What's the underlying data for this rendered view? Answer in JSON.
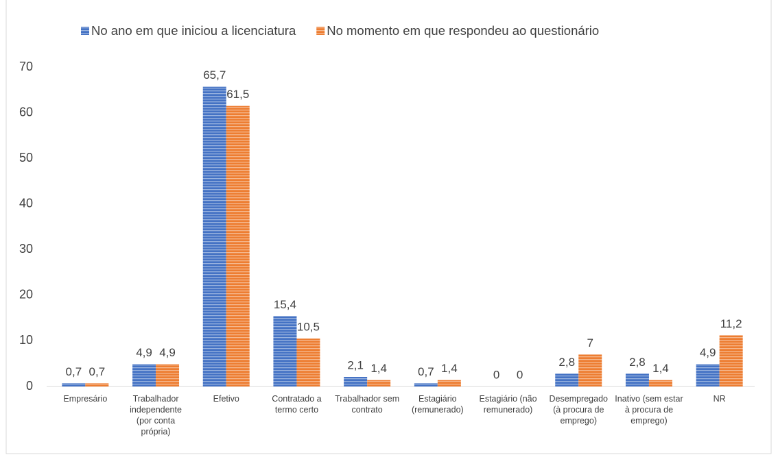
{
  "chart_data": {
    "type": "bar",
    "categories": [
      "Empresário",
      "Trabalhador independente (por conta própria)",
      "Efetivo",
      "Contratado a termo certo",
      "Trabalhador sem contrato",
      "Estagiário (remunerado)",
      "Estagiário (não remunerado)",
      "Desempregado (à procura de emprego)",
      "Inativo (sem estar à procura de emprego)",
      "NR"
    ],
    "series": [
      {
        "name": "No ano em que iniciou a licenciatura",
        "color": "#4472c4",
        "values": [
          0.7,
          4.9,
          65.7,
          15.4,
          2.1,
          0.7,
          0,
          2.8,
          2.8,
          4.9
        ],
        "value_labels": [
          "0,7",
          "4,9",
          "65,7",
          "15,4",
          "2,1",
          "0,7",
          "0",
          "2,8",
          "2,8",
          "4,9"
        ]
      },
      {
        "name": "No momento em que respondeu ao questionário",
        "color": "#ed7d31",
        "values": [
          0.7,
          4.9,
          61.5,
          10.5,
          1.4,
          1.4,
          0,
          7,
          1.4,
          11.2
        ],
        "value_labels": [
          "0,7",
          "4,9",
          "61,5",
          "10,5",
          "1,4",
          "1,4",
          "0",
          "7",
          "1,4",
          "11,2"
        ]
      }
    ],
    "ylim": [
      0,
      70
    ],
    "yticks": [
      0,
      10,
      20,
      30,
      40,
      50,
      60,
      70
    ],
    "legend": "top",
    "grid": false
  }
}
